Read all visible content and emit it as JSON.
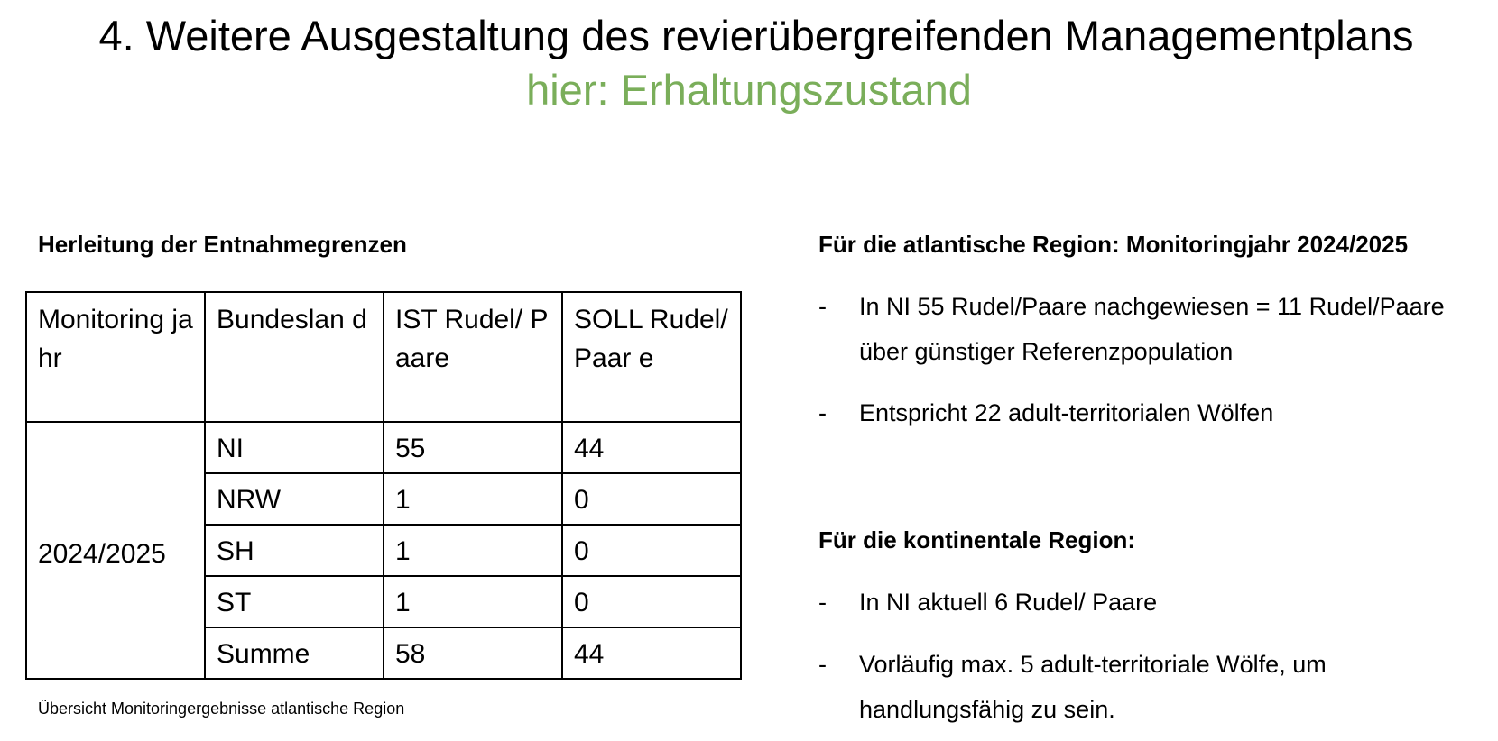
{
  "slide": {
    "title": "4. Weitere Ausgestaltung des revierübergreifenden Managementplans",
    "subtitle": "hier: Erhaltungszustand",
    "accent_color": "#7aae5a"
  },
  "left": {
    "heading": "Herleitung der Entnahmegrenzen",
    "table": {
      "headers": [
        "Monitoring jahr",
        "Bundeslan d",
        "IST Rudel/ Paare",
        "SOLL Rudel/Paar e"
      ],
      "year": "2024/2025",
      "rows": [
        {
          "land": "NI",
          "ist": "55",
          "soll": "44"
        },
        {
          "land": "NRW",
          "ist": "1",
          "soll": "0"
        },
        {
          "land": "SH",
          "ist": "1",
          "soll": "0"
        },
        {
          "land": "ST",
          "ist": "1",
          "soll": "0"
        },
        {
          "land": "Summe",
          "ist": "58",
          "soll": "44"
        }
      ]
    },
    "caption": "Übersicht Monitoringergebnisse atlantische Region"
  },
  "right": {
    "section1": {
      "heading": "Für die atlantische Region: Monitoringjahr 2024/2025",
      "bullets": [
        {
          "dash": "-",
          "text": "In NI 55 Rudel/Paare nachgewiesen =  11 Rudel/Paare über günstiger Referenzpopulation"
        },
        {
          "dash": "-",
          "text": "Entspricht 22 adult-territorialen Wölfen"
        }
      ]
    },
    "section2": {
      "heading": "Für die kontinentale Region:",
      "bullets": [
        {
          "dash": "-",
          "text": "In NI aktuell 6 Rudel/ Paare"
        },
        {
          "dash": "-",
          "text": "Vorläufig max. 5 adult-territoriale Wölfe, um handlungsfähig zu sein."
        }
      ]
    }
  }
}
